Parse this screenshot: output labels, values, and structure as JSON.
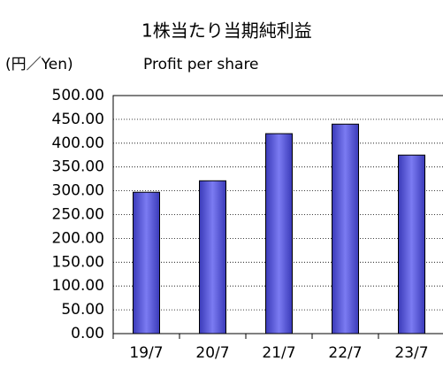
{
  "chart_data": {
    "type": "bar",
    "title": "1株当たり当期純利益",
    "subtitle": "Profit per share",
    "y_label": "(円／Yen)",
    "categories": [
      "19/7",
      "20/7",
      "21/7",
      "22/7",
      "23/7"
    ],
    "values": [
      297,
      321,
      420,
      440,
      375
    ],
    "color": "#7b7bf2",
    "ylim": [
      0,
      500
    ],
    "yticks": [
      {
        "value": 0,
        "label": "0.00"
      },
      {
        "value": 50,
        "label": "50.00"
      },
      {
        "value": 100,
        "label": "100.00"
      },
      {
        "value": 150,
        "label": "150.00"
      },
      {
        "value": 200,
        "label": "200.00"
      },
      {
        "value": 250,
        "label": "250.00"
      },
      {
        "value": 300,
        "label": "300.00"
      },
      {
        "value": 350,
        "label": "350.00"
      },
      {
        "value": 400,
        "label": "400.00"
      },
      {
        "value": 450,
        "label": "450.00"
      },
      {
        "value": 500,
        "label": "500.00"
      }
    ],
    "grid": true
  }
}
